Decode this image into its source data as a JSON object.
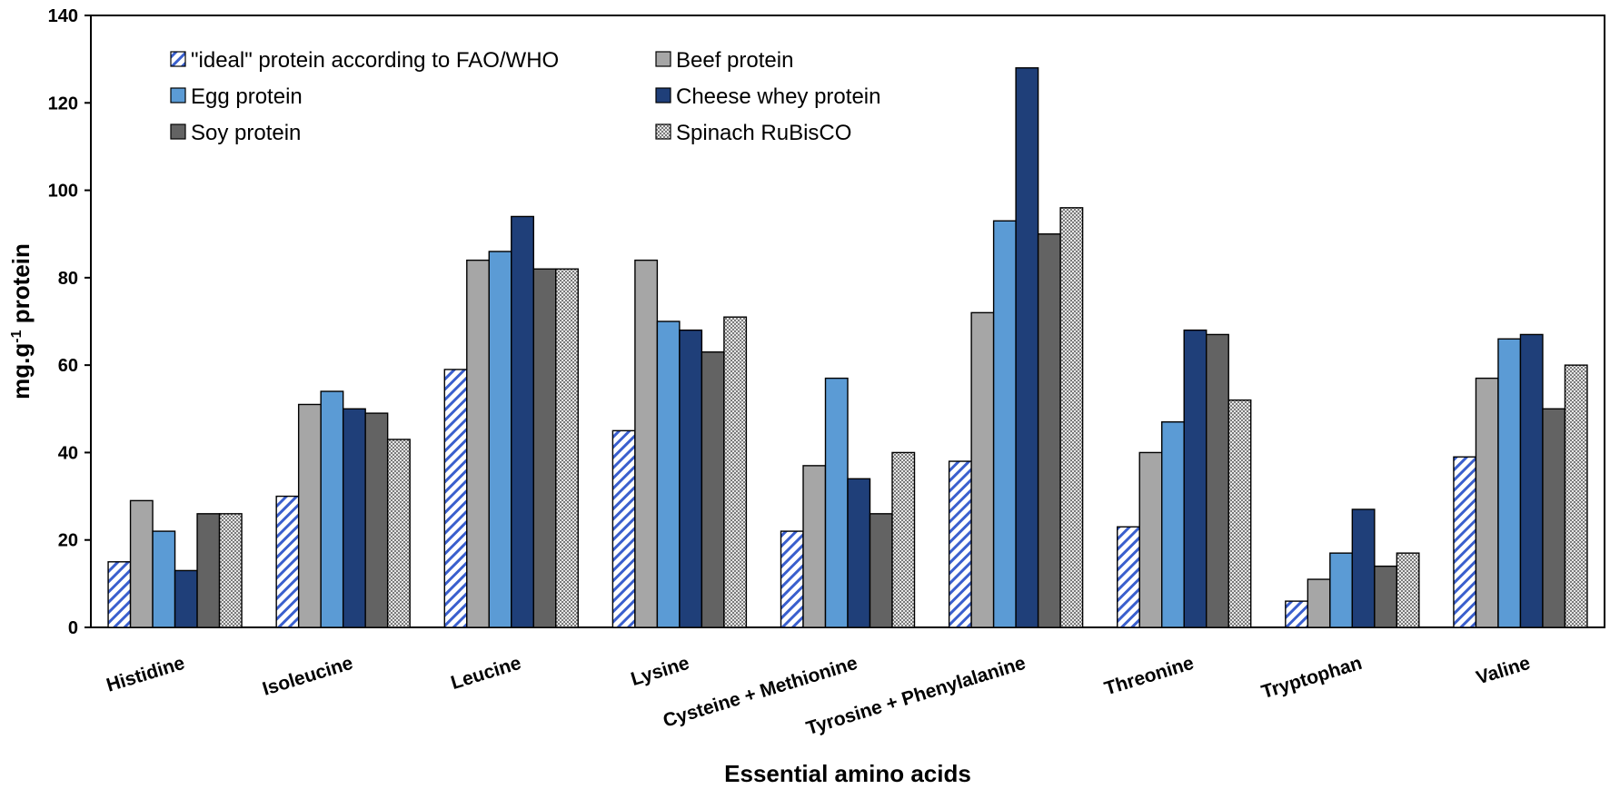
{
  "chart_data": {
    "type": "bar",
    "title": "",
    "xlabel": "Essential amino acids",
    "ylabel_main": "mg.g",
    "ylabel_sup": "-1",
    "ylabel_tail": " protein",
    "ylim": [
      0,
      140
    ],
    "yticks": [
      0,
      20,
      40,
      60,
      80,
      100,
      120,
      140
    ],
    "legend_position": "top-left",
    "categories": [
      "Histidine",
      "Isoleucine",
      "Leucine",
      "Lysine",
      "Cysteine + Methionine",
      "Tyrosine + Phenylalanine",
      "Threonine",
      "Tryptophan",
      "Valine"
    ],
    "series": [
      {
        "name": "\"ideal\" protein according to FAO/WHO",
        "style": "hatch",
        "color": "#3a5fcd",
        "values": [
          15,
          30,
          59,
          45,
          22,
          38,
          23,
          6,
          39
        ]
      },
      {
        "name": "Beef protein",
        "style": "solid",
        "color": "#a6a6a6",
        "values": [
          29,
          51,
          84,
          84,
          37,
          72,
          40,
          11,
          57
        ]
      },
      {
        "name": "Egg protein",
        "style": "solid",
        "color": "#5b9bd5",
        "values": [
          22,
          54,
          86,
          70,
          57,
          93,
          47,
          17,
          66
        ]
      },
      {
        "name": "Cheese whey protein",
        "style": "solid",
        "color": "#1f3f79",
        "values": [
          13,
          50,
          94,
          68,
          34,
          128,
          68,
          27,
          67
        ]
      },
      {
        "name": "Soy protein",
        "style": "solid",
        "color": "#636363",
        "values": [
          26,
          49,
          82,
          63,
          26,
          90,
          67,
          14,
          50
        ]
      },
      {
        "name": "Spinach RuBisCO",
        "style": "dots",
        "color": "#bdbdbd",
        "values": [
          26,
          43,
          82,
          71,
          40,
          96,
          52,
          17,
          60
        ]
      }
    ]
  }
}
